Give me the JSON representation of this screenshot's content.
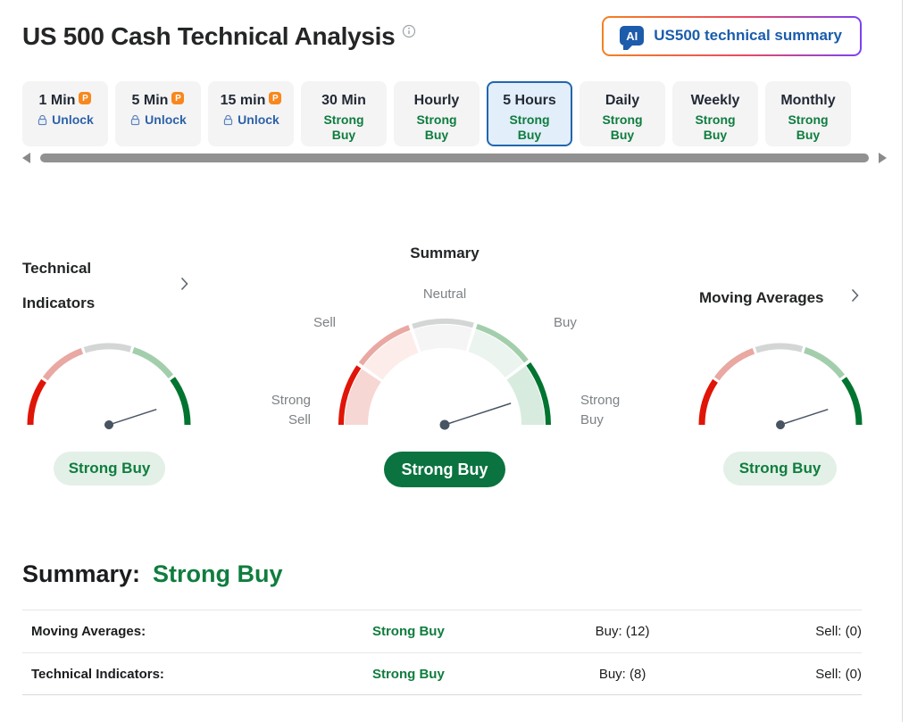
{
  "header": {
    "title": "US 500 Cash Technical Analysis",
    "ai_icon_text": "AI",
    "ai_button_label": "US500 technical summary"
  },
  "tabs": [
    {
      "label": "1 Min",
      "pro_badge": "P",
      "sub": "Unlock",
      "locked": true
    },
    {
      "label": "5 Min",
      "pro_badge": "P",
      "sub": "Unlock",
      "locked": true
    },
    {
      "label": "15 min",
      "pro_badge": "P",
      "sub": "Unlock",
      "locked": true
    },
    {
      "label": "30 Min",
      "sub": "Strong Buy"
    },
    {
      "label": "Hourly",
      "sub": "Strong Buy"
    },
    {
      "label": "5 Hours",
      "sub": "Strong Buy",
      "selected": true
    },
    {
      "label": "Daily",
      "sub": "Strong Buy"
    },
    {
      "label": "Weekly",
      "sub": "Strong Buy"
    },
    {
      "label": "Monthly",
      "sub": "Strong Buy"
    }
  ],
  "gauges": {
    "technical_indicators": {
      "title": "Technical Indicators",
      "badge": "Strong Buy",
      "needle_angle_deg": 18
    },
    "summary": {
      "title": "Summary",
      "badge": "Strong Buy",
      "needle_angle_deg": 18,
      "scale_labels": {
        "strong_sell": "Strong Sell",
        "sell": "Sell",
        "neutral": "Neutral",
        "buy": "Buy",
        "strong_buy": "Strong Buy"
      }
    },
    "moving_averages": {
      "title": "Moving Averages",
      "badge": "Strong Buy",
      "needle_angle_deg": 18
    }
  },
  "summary_table": {
    "heading": "Summary:",
    "overall_signal": "Strong Buy",
    "rows": [
      {
        "label": "Moving Averages:",
        "signal": "Strong Buy",
        "buy_count": "Buy: (12)",
        "sell_count": "Sell: (0)"
      },
      {
        "label": "Technical Indicators:",
        "signal": "Strong Buy",
        "buy_count": "Buy: (8)",
        "sell_count": "Sell: (0)"
      }
    ]
  },
  "colors": {
    "signal_green_text": "#0e7d3e",
    "badge_dark_green": "#0a7340",
    "badge_light_green_bg": "#e3f0e7",
    "gauge_strong_sell": "#e01507",
    "gauge_sell": "#e9a8a2",
    "gauge_neutral": "#d4d6d6",
    "gauge_buy": "#a3ceac",
    "gauge_strong_buy": "#017430",
    "selected_tab_border": "#2166ad",
    "selected_tab_bg": "#e2eefa",
    "link_blue": "#1a5cab",
    "pro_badge_orange": "#f8871d",
    "ai_button_gradient": [
      "#f48120",
      "#e84a63",
      "#7a42f4"
    ]
  }
}
